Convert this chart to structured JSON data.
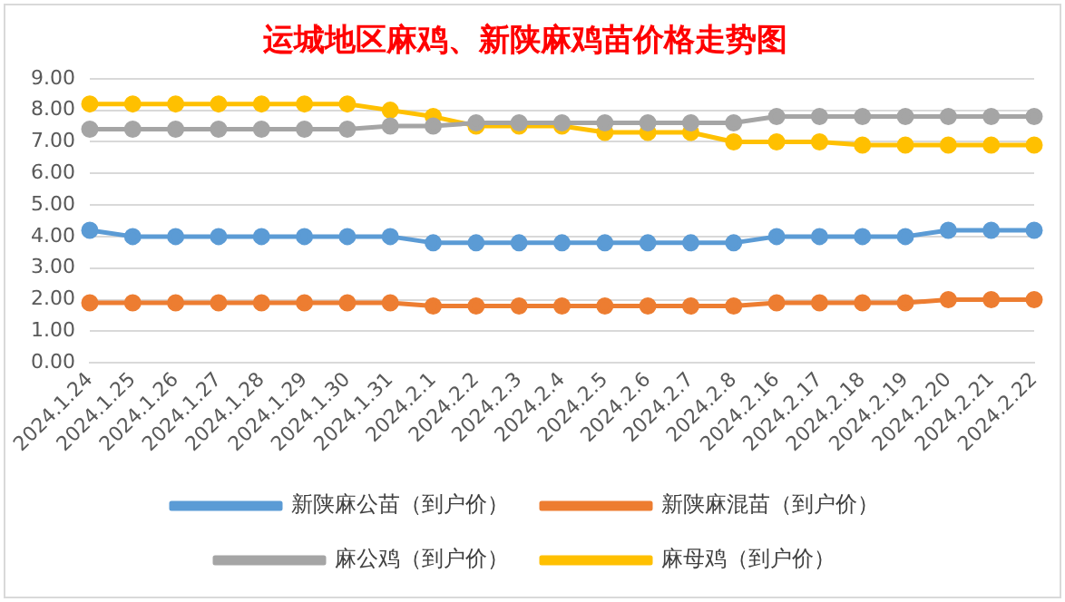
{
  "chart_data": {
    "type": "line",
    "title": "运城地区麻鸡、新陕麻鸡苗价格走势图",
    "categories": [
      "2024.1.24",
      "2024.1.25",
      "2024.1.26",
      "2024.1.27",
      "2024.1.28",
      "2024.1.29",
      "2024.1.30",
      "2024.1.31",
      "2024.2.1",
      "2024.2.2",
      "2024.2.3",
      "2024.2.4",
      "2024.2.5",
      "2024.2.6",
      "2024.2.7",
      "2024.2.8",
      "2024.2.16",
      "2024.2.17",
      "2024.2.18",
      "2024.2.19",
      "2024.2.20",
      "2024.2.21",
      "2024.2.22"
    ],
    "series": [
      {
        "name": "新陕麻公苗（到户价）",
        "color": "#5b9bd5",
        "values": [
          4.2,
          4.0,
          4.0,
          4.0,
          4.0,
          4.0,
          4.0,
          4.0,
          3.8,
          3.8,
          3.8,
          3.8,
          3.8,
          3.8,
          3.8,
          3.8,
          4.0,
          4.0,
          4.0,
          4.0,
          4.2,
          4.2,
          4.2
        ]
      },
      {
        "name": "新陕麻混苗（到户价）",
        "color": "#ed7d31",
        "values": [
          1.9,
          1.9,
          1.9,
          1.9,
          1.9,
          1.9,
          1.9,
          1.9,
          1.8,
          1.8,
          1.8,
          1.8,
          1.8,
          1.8,
          1.8,
          1.8,
          1.9,
          1.9,
          1.9,
          1.9,
          2.0,
          2.0,
          2.0
        ]
      },
      {
        "name": "麻公鸡（到户价）",
        "color": "#a5a5a5",
        "values": [
          7.4,
          7.4,
          7.4,
          7.4,
          7.4,
          7.4,
          7.4,
          7.5,
          7.5,
          7.6,
          7.6,
          7.6,
          7.6,
          7.6,
          7.6,
          7.6,
          7.8,
          7.8,
          7.8,
          7.8,
          7.8,
          7.8,
          7.8
        ]
      },
      {
        "name": "麻母鸡（到户价）",
        "color": "#ffc000",
        "values": [
          8.2,
          8.2,
          8.2,
          8.2,
          8.2,
          8.2,
          8.2,
          8.0,
          7.8,
          7.5,
          7.5,
          7.5,
          7.3,
          7.3,
          7.3,
          7.0,
          7.0,
          7.0,
          6.9,
          6.9,
          6.9,
          6.9,
          6.9
        ]
      }
    ],
    "ylim": [
      0,
      9
    ],
    "yticks": [
      {
        "value": 0,
        "label": "0.00"
      },
      {
        "value": 1,
        "label": "1.00"
      },
      {
        "value": 2,
        "label": "2.00"
      },
      {
        "value": 3,
        "label": "3.00"
      },
      {
        "value": 4,
        "label": "4.00"
      },
      {
        "value": 5,
        "label": "5.00"
      },
      {
        "value": 6,
        "label": "6.00"
      },
      {
        "value": 7,
        "label": "7.00"
      },
      {
        "value": 8,
        "label": "8.00"
      },
      {
        "value": 9,
        "label": "9.00"
      }
    ],
    "grid": "y",
    "legend": "bottom",
    "marker": "circle",
    "line_style": "solid"
  }
}
